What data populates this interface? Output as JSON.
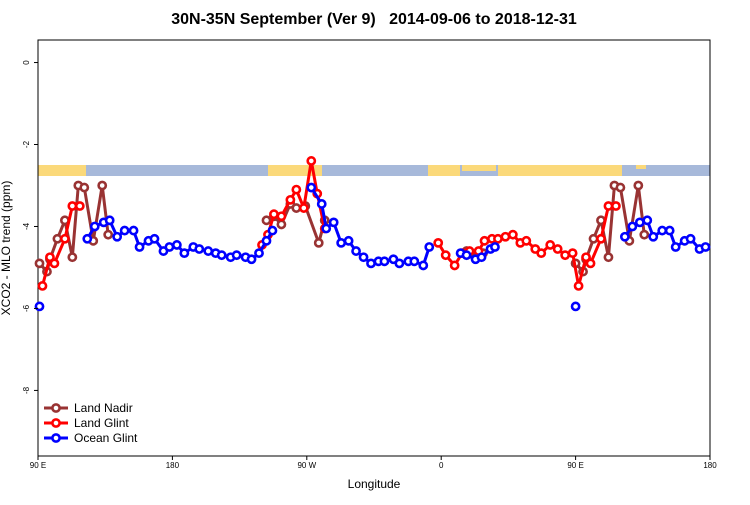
{
  "chart_data": {
    "type": "line",
    "title": "30N-35N September (Ver 9)   2014-09-06 to 2018-12-31",
    "x_label": "Longitude",
    "y_label": "XCO2 - MLO trend (ppm)",
    "xlim": [
      90,
      540
    ],
    "ylim": [
      -9.6,
      0.55
    ],
    "xticks": [
      {
        "value": 90,
        "label": "90 E"
      },
      {
        "value": 180,
        "label": "180"
      },
      {
        "value": 270,
        "label": "90 W"
      },
      {
        "value": 360,
        "label": "0"
      },
      {
        "value": 450,
        "label": "90 E"
      },
      {
        "value": 540,
        "label": "180"
      }
    ],
    "yticks": [
      0,
      -2,
      -4,
      -6,
      -8
    ],
    "legend": "bottom-left",
    "series": [
      {
        "name": "Land Nadir",
        "color": "#993333",
        "x": [
          91,
          96,
          98,
          103,
          108,
          113,
          117,
          121,
          127,
          133,
          137,
          null,
          243,
          248,
          253,
          259,
          263,
          269,
          278,
          282,
          null,
          377,
          383,
          388,
          null,
          450,
          455,
          457,
          462,
          467,
          472,
          476,
          480,
          486,
          492,
          496
        ],
        "values": [
          -4.9,
          -5.1,
          -4.8,
          -4.3,
          -3.85,
          -4.75,
          -3.0,
          -3.05,
          -4.35,
          -3.0,
          -4.2,
          null,
          -3.85,
          -3.75,
          -3.95,
          -3.45,
          -3.55,
          -3.5,
          -4.4,
          -3.85,
          null,
          -4.6,
          -4.75,
          -4.65,
          null,
          -4.9,
          -5.1,
          -4.8,
          -4.3,
          -3.85,
          -4.75,
          -3.0,
          -3.05,
          -4.35,
          -3.0,
          -4.2
        ]
      },
      {
        "name": "Land Glint",
        "color": "#ff0000",
        "x": [
          93,
          98,
          101,
          108,
          113,
          118,
          null,
          240,
          244,
          248,
          253,
          259,
          263,
          268,
          273,
          277,
          282,
          null,
          358,
          363,
          369,
          374,
          379,
          385,
          389,
          394,
          398,
          403,
          408,
          413,
          417,
          423,
          427,
          433,
          438,
          443,
          448,
          452,
          457,
          460,
          467,
          472,
          477
        ],
        "values": [
          -5.45,
          -4.75,
          -4.9,
          -4.3,
          -3.5,
          -3.5,
          null,
          -4.45,
          -4.2,
          -3.7,
          -3.75,
          -3.35,
          -3.1,
          -3.55,
          -2.4,
          -3.2,
          -4.05,
          null,
          -4.4,
          -4.7,
          -4.95,
          -4.65,
          -4.6,
          -4.6,
          -4.35,
          -4.3,
          -4.3,
          -4.25,
          -4.2,
          -4.4,
          -4.35,
          -4.55,
          -4.65,
          -4.45,
          -4.55,
          -4.7,
          -4.65,
          -5.45,
          -4.75,
          -4.9,
          -4.3,
          -3.5,
          -3.5
        ]
      },
      {
        "name": "Ocean Glint",
        "color": "#0000ff",
        "x": [
          91,
          null,
          123,
          128,
          134,
          138,
          143,
          148,
          154,
          158,
          164,
          168,
          174,
          178,
          183,
          188,
          194,
          198,
          204,
          209,
          213,
          219,
          223,
          229,
          233,
          238,
          243,
          247,
          null,
          273,
          280,
          283,
          288,
          293,
          298,
          303,
          308,
          313,
          318,
          322,
          328,
          332,
          338,
          342,
          348,
          352,
          null,
          373,
          377,
          383,
          387,
          393,
          396,
          null,
          450,
          null,
          483,
          488,
          493,
          498,
          502,
          508,
          513,
          517,
          523,
          527,
          533,
          537
        ],
        "values": [
          -5.95,
          null,
          -4.3,
          -4.0,
          -3.9,
          -3.85,
          -4.25,
          -4.1,
          -4.1,
          -4.5,
          -4.35,
          -4.3,
          -4.6,
          -4.5,
          -4.45,
          -4.65,
          -4.5,
          -4.55,
          -4.6,
          -4.65,
          -4.7,
          -4.75,
          -4.7,
          -4.75,
          -4.8,
          -4.65,
          -4.35,
          -4.1,
          null,
          -3.05,
          -3.45,
          -4.05,
          -3.9,
          -4.4,
          -4.35,
          -4.6,
          -4.75,
          -4.9,
          -4.85,
          -4.85,
          -4.8,
          -4.9,
          -4.85,
          -4.85,
          -4.95,
          -4.5,
          null,
          -4.65,
          -4.7,
          -4.8,
          -4.75,
          -4.55,
          -4.5,
          null,
          -5.95,
          null,
          -4.25,
          -4.0,
          -3.9,
          -3.85,
          -4.25,
          -4.1,
          -4.1,
          -4.5,
          -4.35,
          -4.3,
          -4.55,
          -4.5
        ]
      }
    ]
  }
}
